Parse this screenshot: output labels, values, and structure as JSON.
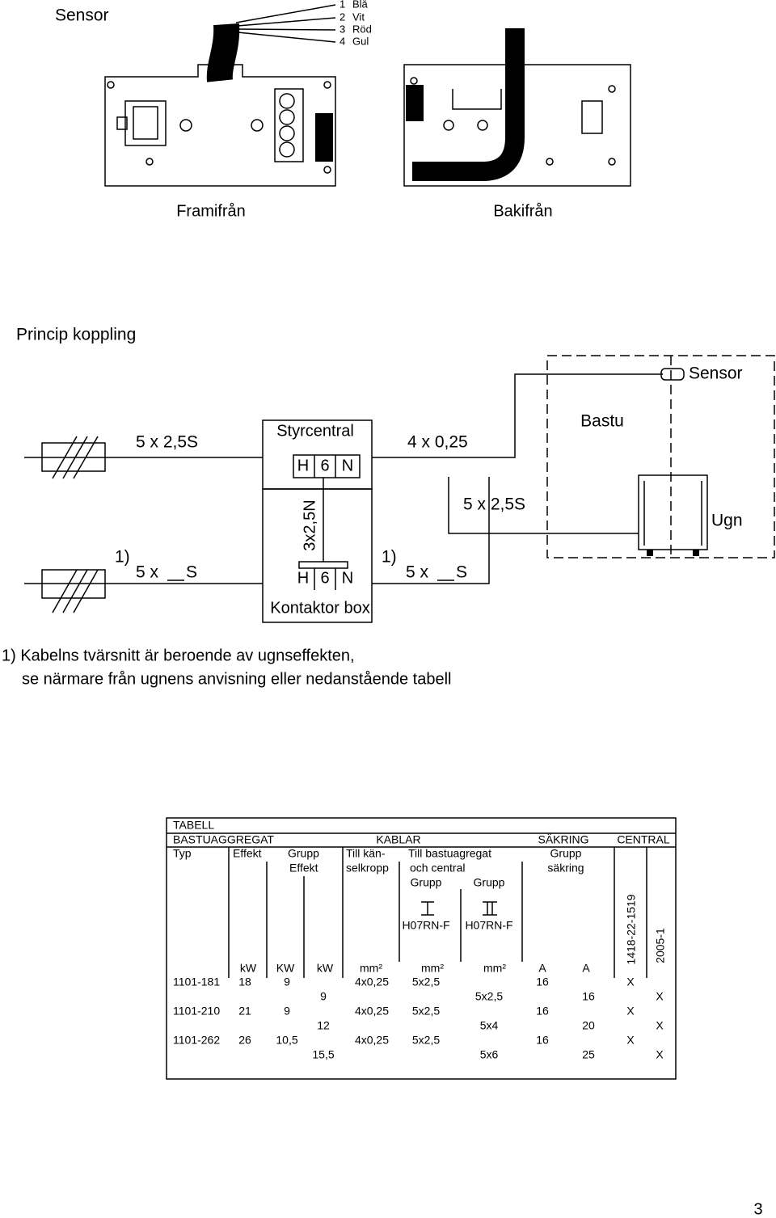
{
  "sensor_part": {
    "title": "Sensor",
    "wires": [
      {
        "num": "1",
        "color": "Blå"
      },
      {
        "num": "2",
        "color": "Vit"
      },
      {
        "num": "3",
        "color": "Röd"
      },
      {
        "num": "4",
        "color": "Gul"
      }
    ],
    "views": [
      "Framifrån",
      "Bakifrån"
    ]
  },
  "principle": {
    "title": "Princip koppling",
    "supply_top": "5 x 2,5S",
    "central": {
      "label": "Styrcentral",
      "terminals": [
        "H",
        "6",
        "N"
      ]
    },
    "sensor_cable": "4 x 0,25",
    "sauna": "Bastu",
    "sensor": "Sensor",
    "heater_cable": "5 x 2,5S",
    "heater": "Ugn",
    "internal_cable": "3x2,5N",
    "contactor": {
      "label": "Kontaktor box",
      "terminals": [
        "H",
        "6",
        "N"
      ]
    },
    "supply_bottom": {
      "note": "1)",
      "prefix": "5 x",
      "suffix": "S"
    },
    "heater_cable_bottom": {
      "note": "1)",
      "prefix": "5 x",
      "suffix": "S"
    }
  },
  "note": [
    "1) Kabelns tvärsnitt är beroende av ugnseffekten,",
    "se närmare från ugnens anvisning eller nedanstående tabell"
  ],
  "table": {
    "title": "TABELL",
    "groups": [
      "BASTUAGGREGAT",
      "KABLAR",
      "SÄKRING",
      "CENTRAL"
    ],
    "headers": [
      [
        "Typ"
      ],
      [
        "Effekt"
      ],
      [
        "Grupp",
        "Effekt"
      ],
      [
        "Till kän-",
        "selkropp"
      ],
      [
        "Till bastuagregat",
        "och central"
      ],
      [
        "Grupp",
        "säkring"
      ]
    ],
    "subheaders": [
      "Grupp",
      "Grupp"
    ],
    "roman": [
      "I",
      "II"
    ],
    "cable_types": [
      "H07RN-F",
      "H07RN-F"
    ],
    "codes": [
      "1418-22-1519",
      "2005-1"
    ],
    "units": [
      "kW",
      "KW",
      "kW",
      "mm²",
      "mm²",
      "mm²",
      "A",
      "A"
    ],
    "rows": [
      {
        "main": [
          "1101-181",
          "18",
          "9",
          "4x0,25",
          "5x2,5",
          "16",
          "X"
        ],
        "sub": [
          "9",
          "5x2,5",
          "16",
          "X"
        ]
      },
      {
        "main": [
          "1101-210",
          "21",
          "9",
          "4x0,25",
          "5x2,5",
          "16",
          "X"
        ],
        "sub": [
          "12",
          "5x4",
          "20",
          "X"
        ]
      },
      {
        "main": [
          "1101-262",
          "26",
          "10,5",
          "4x0,25",
          "5x2,5",
          "16",
          "X"
        ],
        "sub": [
          "15,5",
          "5x6",
          "25",
          "X"
        ]
      }
    ]
  },
  "page_number": "3"
}
